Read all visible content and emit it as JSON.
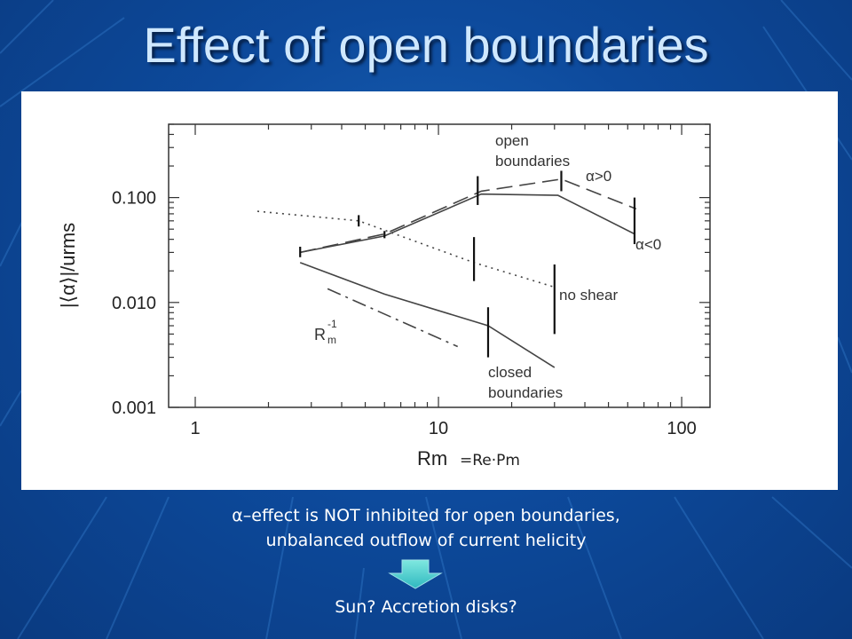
{
  "slide": {
    "title": "Effect of open boundaries",
    "caption_line1": "α–effect is NOT inhibited for open boundaries,",
    "caption_line2": "unbalanced outflow of current helicity",
    "question": "Sun? Accretion disks?"
  },
  "chart_data": {
    "type": "line",
    "xscale": "log",
    "yscale": "log",
    "xlim": [
      1,
      150
    ],
    "ylim": [
      0.001,
      0.5
    ],
    "xticks": [
      {
        "v": 1,
        "label": "1"
      },
      {
        "v": 10,
        "label": "10"
      },
      {
        "v": 100,
        "label": "100"
      }
    ],
    "yticks": [
      {
        "v": 0.001,
        "label": "0.001"
      },
      {
        "v": 0.01,
        "label": "0.010"
      },
      {
        "v": 0.1,
        "label": "0.100"
      }
    ],
    "ylabel": "|⟨α⟩|/urms",
    "xlabel": "Rm",
    "xlabel_suffix": "=Re·Pm",
    "series": [
      {
        "key": "open_pos",
        "dash": "18,8",
        "points": [
          [
            2.7,
            0.03
          ],
          [
            6.0,
            0.045
          ],
          [
            15,
            0.115
          ],
          [
            32,
            0.15
          ],
          [
            65,
            0.078
          ]
        ]
      },
      {
        "key": "open_neg",
        "dash": "",
        "points": [
          [
            2.7,
            0.03
          ],
          [
            6.0,
            0.043
          ],
          [
            15,
            0.108
          ],
          [
            31,
            0.105
          ],
          [
            64,
            0.045
          ]
        ]
      },
      {
        "key": "no_shear",
        "dash": "2,5",
        "points": [
          [
            1.8,
            0.074
          ],
          [
            4.7,
            0.06
          ],
          [
            14,
            0.024
          ],
          [
            30,
            0.014
          ]
        ]
      },
      {
        "key": "closed",
        "dash": "",
        "points": [
          [
            2.7,
            0.024
          ],
          [
            6.0,
            0.012
          ],
          [
            16,
            0.006
          ],
          [
            30,
            0.0024
          ]
        ]
      },
      {
        "key": "rm_inv",
        "dash": "16,6,3,6",
        "points": [
          [
            3.5,
            0.0135
          ],
          [
            12,
            0.0038
          ]
        ]
      }
    ],
    "errorbars": [
      {
        "x": 2.7,
        "lo": 0.027,
        "hi": 0.034
      },
      {
        "x": 4.7,
        "lo": 0.053,
        "hi": 0.068
      },
      {
        "x": 6.0,
        "lo": 0.041,
        "hi": 0.048
      },
      {
        "x": 14.5,
        "lo": 0.085,
        "hi": 0.16
      },
      {
        "x": 14.0,
        "lo": 0.016,
        "hi": 0.042
      },
      {
        "x": 16.0,
        "lo": 0.003,
        "hi": 0.009
      },
      {
        "x": 30.0,
        "lo": 0.005,
        "hi": 0.023
      },
      {
        "x": 32.0,
        "lo": 0.115,
        "hi": 0.18
      },
      {
        "x": 64.0,
        "lo": 0.036,
        "hi": 0.1
      }
    ],
    "annotations": {
      "open_line1": "open",
      "open_line2": "boundaries",
      "alpha_pos": "α>0",
      "alpha_neg": "α<0",
      "no_shear": "no shear",
      "rm_base": "R",
      "rm_sup": "-1",
      "rm_sub": "m",
      "closed_line1": "closed",
      "closed_line2": "boundaries"
    }
  }
}
